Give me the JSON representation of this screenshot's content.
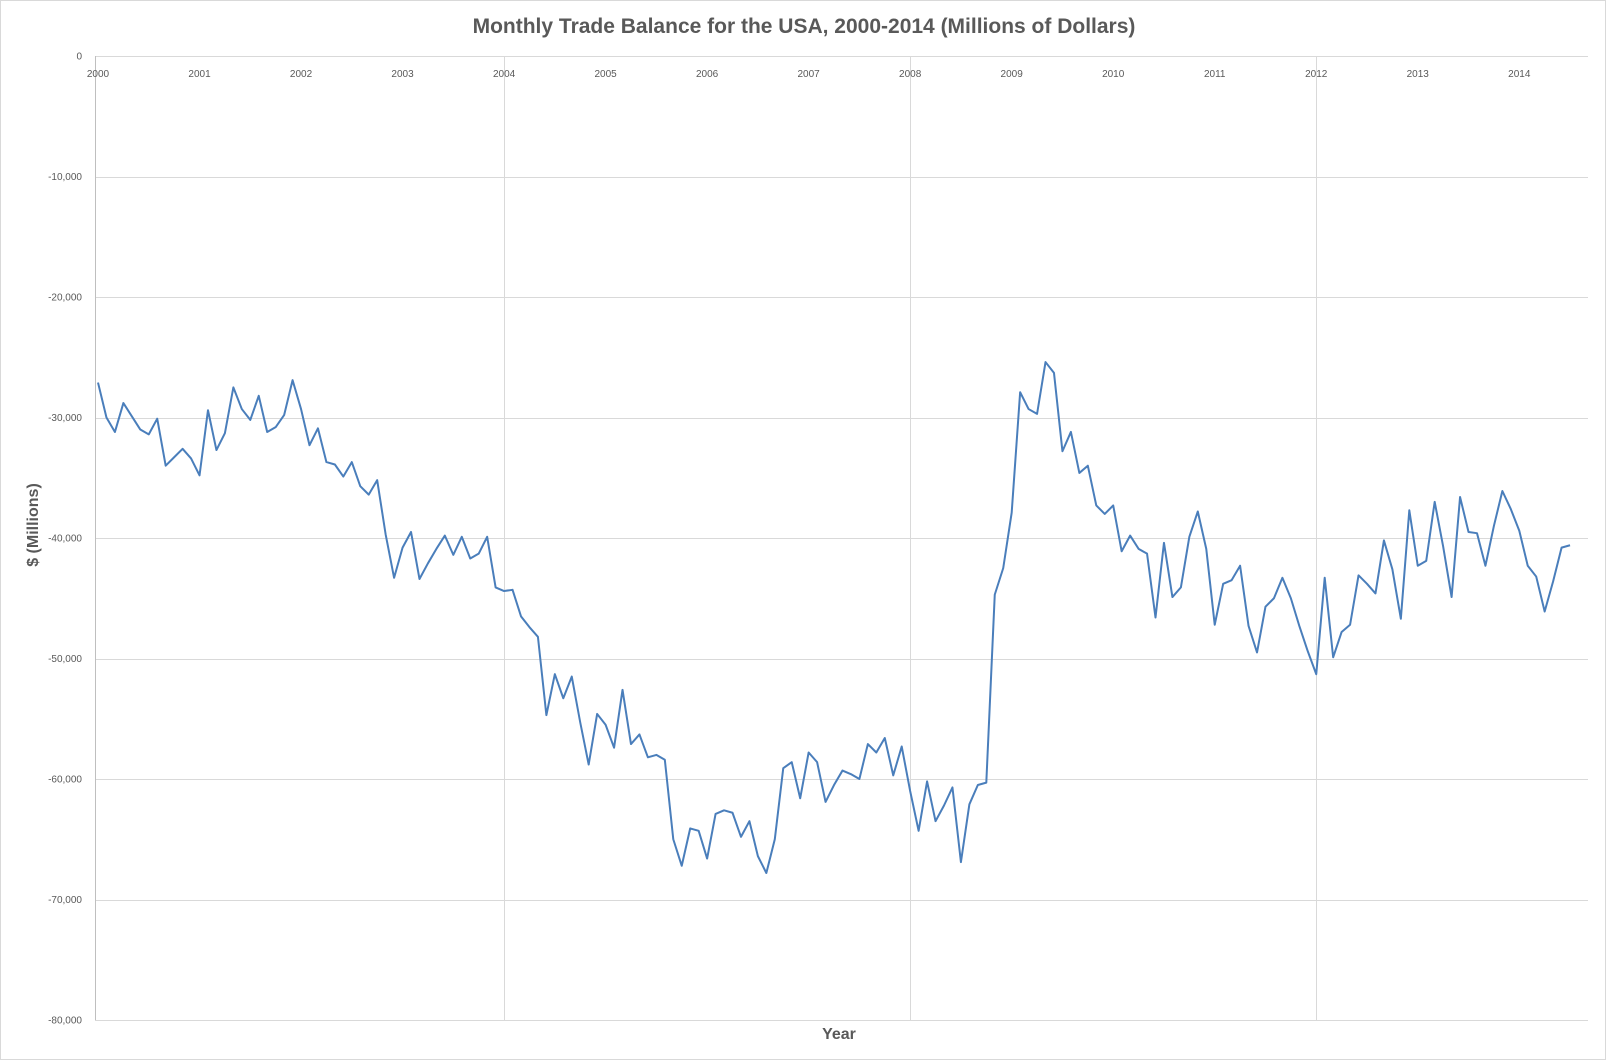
{
  "chart_data": {
    "type": "line",
    "title": "Monthly Trade Balance for the USA, 2000-2014 (Millions of Dollars)",
    "xlabel": "Year",
    "ylabel": "$ (Millions)",
    "ylim": [
      -80000,
      0
    ],
    "y_ticks": [
      0,
      -10000,
      -20000,
      -30000,
      -40000,
      -50000,
      -60000,
      -70000,
      -80000
    ],
    "y_tick_labels": [
      "0",
      "-10,000",
      "-20,000",
      "-30,000",
      "-40,000",
      "-50,000",
      "-60,000",
      "-70,000",
      "-80,000"
    ],
    "x_tick_labels": [
      "2000",
      "2001",
      "2002",
      "2003",
      "2004",
      "2005",
      "2006",
      "2007",
      "2008",
      "2009",
      "2010",
      "2011",
      "2012",
      "2013",
      "2014"
    ],
    "x_start_year": 2000,
    "major_vertical_gridlines": [
      "2004",
      "2008",
      "2012"
    ],
    "grid": true,
    "legend": "none",
    "series_color": "#4a7ebb",
    "series": [
      {
        "values": [
          -27100,
          -30000,
          -31200,
          -28800,
          -29900,
          -31000,
          -31400,
          -30100,
          -34000,
          -33300,
          -32600,
          -33400,
          -34800,
          -29400,
          -32700,
          -31300,
          -27500,
          -29300,
          -30200,
          -28200,
          -31200,
          -30800,
          -29800,
          -26900,
          -29300,
          -32300,
          -30900,
          -33700,
          -33900,
          -34900,
          -33700,
          -35700,
          -36400,
          -35200,
          -39700,
          -43300,
          -40800,
          -39500,
          -43400,
          -42100,
          -40900,
          -39800,
          -41400,
          -39900,
          -41700,
          -41300,
          -39900,
          -44100,
          -44400,
          -44300,
          -46500,
          -47400,
          -48200,
          -54700,
          -51300,
          -53300,
          -51500,
          -55300,
          -58800,
          -54600,
          -55500,
          -57400,
          -52600,
          -57100,
          -56300,
          -58200,
          -58000,
          -58400,
          -65000,
          -67200,
          -64100,
          -64300,
          -66600,
          -62900,
          -62600,
          -62800,
          -64800,
          -63500,
          -66400,
          -67800,
          -65000,
          -59100,
          -58600,
          -61600,
          -57800,
          -58600,
          -61900,
          -60500,
          -59300,
          -59600,
          -60000,
          -57100,
          -57800,
          -56600,
          -59700,
          -57300,
          -61000,
          -64300,
          -60200,
          -63500,
          -62200,
          -60700,
          -66900,
          -62100,
          -60500,
          -60300,
          -44700,
          -42500,
          -37900,
          -27900,
          -29300,
          -29700,
          -25400,
          -26300,
          -32800,
          -31200,
          -34600,
          -34000,
          -37300,
          -38000,
          -37300,
          -41100,
          -39800,
          -40900,
          -41300,
          -46600,
          -40400,
          -44900,
          -44100,
          -39900,
          -37800,
          -40900,
          -47200,
          -43800,
          -43500,
          -42300,
          -47300,
          -49500,
          -45700,
          -45000,
          -43300,
          -45000,
          -47300,
          -49400,
          -51300,
          -43300,
          -49900,
          -47800,
          -47200,
          -43100,
          -43800,
          -44600,
          -40200,
          -42600,
          -46700,
          -37700,
          -42300,
          -41900,
          -37000,
          -40700,
          -44900,
          -36600,
          -39500,
          -39600,
          -42300,
          -39000,
          -36100,
          -37600,
          -39400,
          -42300,
          -43200,
          -46100,
          -43600,
          -40800,
          -40600
        ]
      }
    ]
  }
}
